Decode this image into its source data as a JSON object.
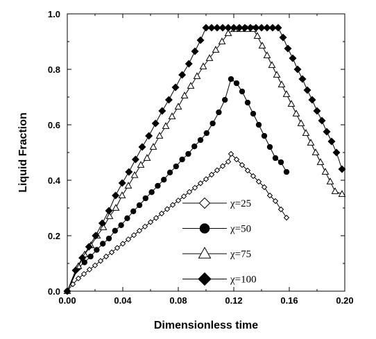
{
  "chart_data": {
    "type": "line",
    "xlabel": "Dimensionless time",
    "ylabel": "Liquid Fraction",
    "xlim": [
      0,
      0.2
    ],
    "ylim": [
      0,
      1.0
    ],
    "x_ticks": [
      "0.00",
      "0.04",
      "0.08",
      "0.12",
      "0.16",
      "0.20"
    ],
    "y_ticks": [
      "0.0",
      "0.2",
      "0.4",
      "0.6",
      "0.8",
      "1.0"
    ],
    "legend_position": "lower-center",
    "series": [
      {
        "name": "χ=25",
        "marker": "diamond-open",
        "x": [
          0,
          0.004,
          0.008,
          0.012,
          0.016,
          0.02,
          0.024,
          0.028,
          0.032,
          0.036,
          0.04,
          0.044,
          0.048,
          0.052,
          0.056,
          0.06,
          0.064,
          0.068,
          0.072,
          0.076,
          0.08,
          0.084,
          0.088,
          0.092,
          0.096,
          0.1,
          0.104,
          0.108,
          0.112,
          0.116,
          0.118,
          0.122,
          0.126,
          0.13,
          0.134,
          0.138,
          0.142,
          0.146,
          0.15,
          0.154,
          0.158
        ],
        "y": [
          0,
          0.025,
          0.046,
          0.062,
          0.078,
          0.093,
          0.109,
          0.125,
          0.14,
          0.156,
          0.171,
          0.187,
          0.202,
          0.218,
          0.233,
          0.249,
          0.264,
          0.28,
          0.296,
          0.311,
          0.327,
          0.342,
          0.358,
          0.373,
          0.389,
          0.404,
          0.42,
          0.436,
          0.451,
          0.467,
          0.495,
          0.475,
          0.455,
          0.435,
          0.415,
          0.395,
          0.375,
          0.345,
          0.325,
          0.295,
          0.265
        ]
      },
      {
        "name": "χ=50",
        "marker": "circle-filled",
        "x": [
          0,
          0.008,
          0.0124,
          0.0168,
          0.0212,
          0.0256,
          0.03,
          0.0344,
          0.0388,
          0.0432,
          0.0476,
          0.052,
          0.0564,
          0.0608,
          0.0652,
          0.0696,
          0.074,
          0.0784,
          0.0828,
          0.0872,
          0.0916,
          0.096,
          0.1004,
          0.1048,
          0.1092,
          0.1136,
          0.118,
          0.122,
          0.126,
          0.13,
          0.134,
          0.138,
          0.142,
          0.146,
          0.15,
          0.154,
          0.158
        ],
        "y": [
          0,
          0.085,
          0.104,
          0.125,
          0.149,
          0.171,
          0.19,
          0.218,
          0.238,
          0.263,
          0.288,
          0.31,
          0.335,
          0.357,
          0.38,
          0.402,
          0.428,
          0.45,
          0.475,
          0.495,
          0.522,
          0.545,
          0.57,
          0.605,
          0.645,
          0.69,
          0.765,
          0.75,
          0.72,
          0.68,
          0.64,
          0.6,
          0.56,
          0.52,
          0.48,
          0.465,
          0.43
        ]
      },
      {
        "name": "χ=75",
        "marker": "triangle-open",
        "x": [
          0,
          0.008,
          0.0125,
          0.017,
          0.0215,
          0.026,
          0.0305,
          0.035,
          0.0395,
          0.044,
          0.0485,
          0.053,
          0.0575,
          0.062,
          0.0665,
          0.071,
          0.0755,
          0.08,
          0.0845,
          0.089,
          0.0935,
          0.098,
          0.1025,
          0.107,
          0.1115,
          0.116,
          0.1205,
          0.125,
          0.1295,
          0.134,
          0.137,
          0.1405,
          0.144,
          0.1475,
          0.151,
          0.1545,
          0.158,
          0.1615,
          0.165,
          0.1685,
          0.172,
          0.1755,
          0.179,
          0.1825,
          0.186,
          0.1895,
          0.193,
          0.198
        ],
        "y": [
          0,
          0.09,
          0.132,
          0.165,
          0.2,
          0.23,
          0.27,
          0.3,
          0.345,
          0.38,
          0.418,
          0.455,
          0.48,
          0.52,
          0.56,
          0.595,
          0.63,
          0.665,
          0.705,
          0.74,
          0.775,
          0.81,
          0.84,
          0.87,
          0.9,
          0.93,
          0.945,
          0.945,
          0.945,
          0.945,
          0.92,
          0.885,
          0.85,
          0.815,
          0.78,
          0.745,
          0.71,
          0.675,
          0.64,
          0.605,
          0.57,
          0.535,
          0.5,
          0.465,
          0.43,
          0.395,
          0.36,
          0.35
        ]
      },
      {
        "name": "χ=100",
        "marker": "diamond-filled",
        "x": [
          0,
          0.006,
          0.0108,
          0.0156,
          0.0204,
          0.0252,
          0.03,
          0.0348,
          0.0396,
          0.0444,
          0.0492,
          0.054,
          0.0588,
          0.0636,
          0.0684,
          0.0732,
          0.078,
          0.0828,
          0.0876,
          0.092,
          0.096,
          0.1,
          0.104,
          0.108,
          0.112,
          0.116,
          0.12,
          0.124,
          0.128,
          0.132,
          0.136,
          0.14,
          0.144,
          0.148,
          0.152,
          0.1555,
          0.159,
          0.1625,
          0.166,
          0.1695,
          0.173,
          0.1765,
          0.18,
          0.1835,
          0.187,
          0.1905,
          0.194,
          0.198
        ],
        "y": [
          0,
          0.075,
          0.12,
          0.16,
          0.2,
          0.245,
          0.29,
          0.345,
          0.39,
          0.43,
          0.475,
          0.52,
          0.56,
          0.605,
          0.65,
          0.69,
          0.735,
          0.78,
          0.82,
          0.865,
          0.905,
          0.95,
          0.95,
          0.95,
          0.95,
          0.95,
          0.95,
          0.95,
          0.95,
          0.95,
          0.95,
          0.95,
          0.95,
          0.95,
          0.95,
          0.915,
          0.875,
          0.84,
          0.8,
          0.765,
          0.725,
          0.69,
          0.65,
          0.615,
          0.575,
          0.54,
          0.5,
          0.44
        ]
      }
    ]
  }
}
